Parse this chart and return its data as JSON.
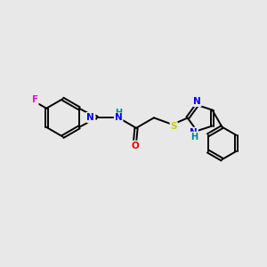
{
  "bg_color": "#e8e8e8",
  "bond_color": "#000000",
  "atom_colors": {
    "F": "#ee00ee",
    "S": "#cccc00",
    "N": "#0000ee",
    "O": "#ee0000",
    "H": "#008888",
    "C": "#000000"
  }
}
